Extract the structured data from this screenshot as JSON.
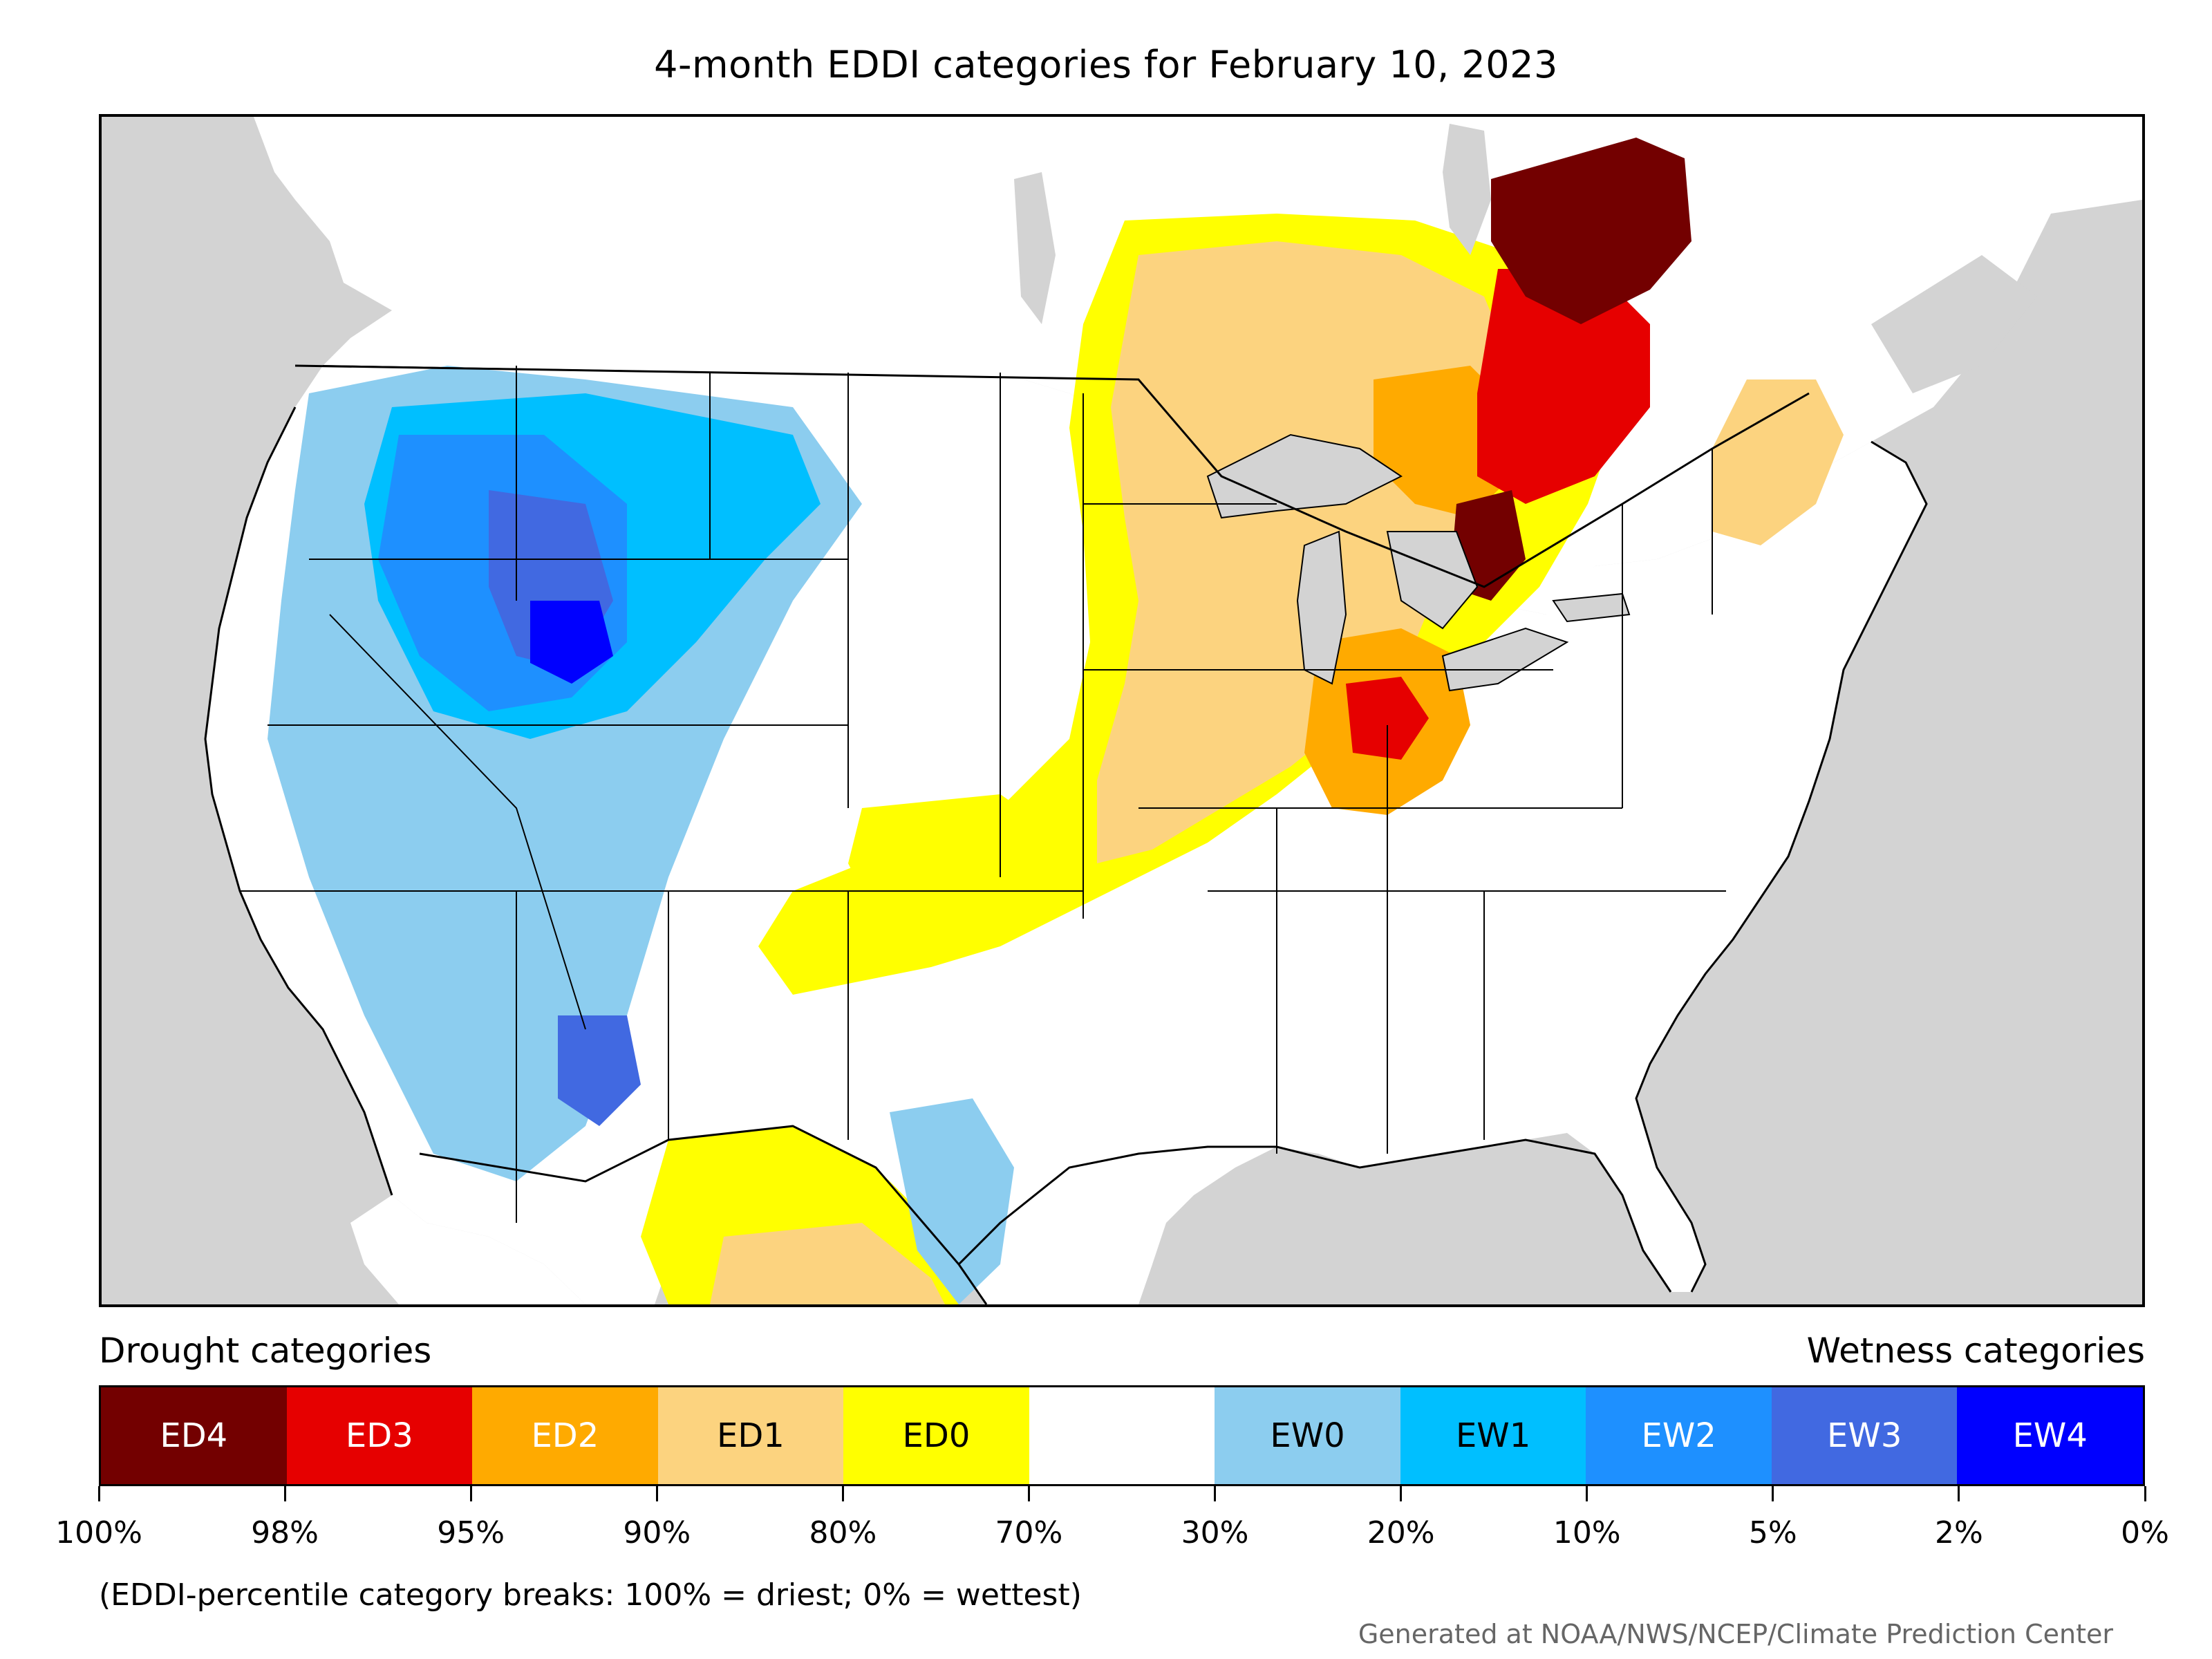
{
  "title": "4-month EDDI categories for February 10, 2023",
  "legend": {
    "left_heading": "Drought categories",
    "right_heading": "Wetness categories",
    "categories": [
      {
        "label": "ED4",
        "color": "#730000",
        "text_color": "#ffffff"
      },
      {
        "label": "ED3",
        "color": "#e60000",
        "text_color": "#ffffff"
      },
      {
        "label": "ED2",
        "color": "#ffaa00",
        "text_color": "#ffffff"
      },
      {
        "label": "ED1",
        "color": "#fcd37f",
        "text_color": "#000000"
      },
      {
        "label": "ED0",
        "color": "#ffff00",
        "text_color": "#000000"
      },
      {
        "label": "",
        "color": "#ffffff",
        "text_color": "#000000"
      },
      {
        "label": "EW0",
        "color": "#8ccdef",
        "text_color": "#000000"
      },
      {
        "label": "EW1",
        "color": "#00bfff",
        "text_color": "#000000"
      },
      {
        "label": "EW2",
        "color": "#1e90ff",
        "text_color": "#ffffff"
      },
      {
        "label": "EW3",
        "color": "#4169e1",
        "text_color": "#ffffff"
      },
      {
        "label": "EW4",
        "color": "#0000ff",
        "text_color": "#ffffff"
      }
    ],
    "tick_labels": [
      "100%",
      "98%",
      "95%",
      "90%",
      "80%",
      "70%",
      "30%",
      "20%",
      "10%",
      "5%",
      "2%",
      "0%"
    ],
    "note": "(EDDI-percentile category breaks: 100% = driest; 0% = wettest)"
  },
  "credit": "Generated at NOAA/NWS/NCEP/Climate Prediction Center",
  "map_colors": {
    "ocean": "#d3d3d3",
    "land": "#ffffff",
    "lakes": "#d3d3d3",
    "borders": "#000000"
  }
}
